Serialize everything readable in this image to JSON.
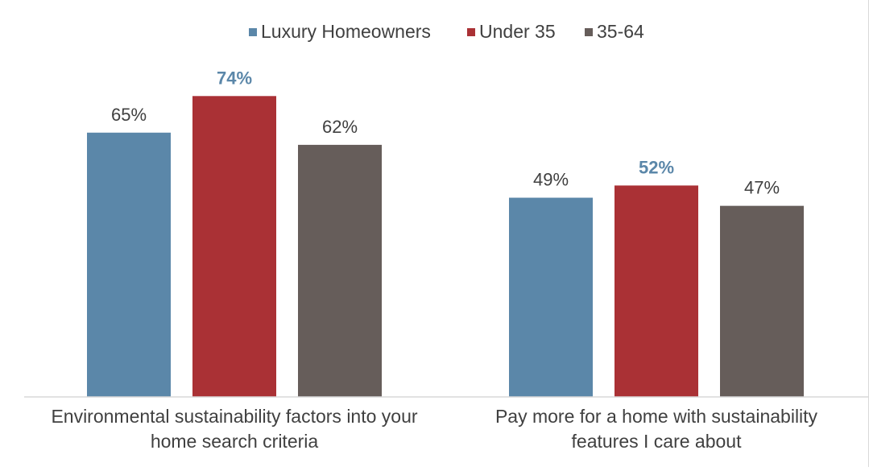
{
  "chart_data": {
    "type": "bar",
    "title": "",
    "categories": [
      [
        "Environmental sustainability factors into your",
        "home search criteria"
      ],
      [
        "Pay more for a home with sustainability",
        "features I care about"
      ]
    ],
    "series": [
      {
        "name": "Luxury Homeowners",
        "color": "#5b87a9",
        "values": [
          65,
          49
        ]
      },
      {
        "name": "Under 35",
        "color": "#aa3135",
        "values": [
          74,
          52
        ]
      },
      {
        "name": "35-64",
        "color": "#665d5a",
        "values": [
          62,
          47
        ]
      }
    ],
    "value_suffix": "%",
    "highlight_label_color": "#5b87a9",
    "label_color": "#404040",
    "ylim": [
      0,
      80
    ],
    "grid": false,
    "legend": "top-center"
  }
}
